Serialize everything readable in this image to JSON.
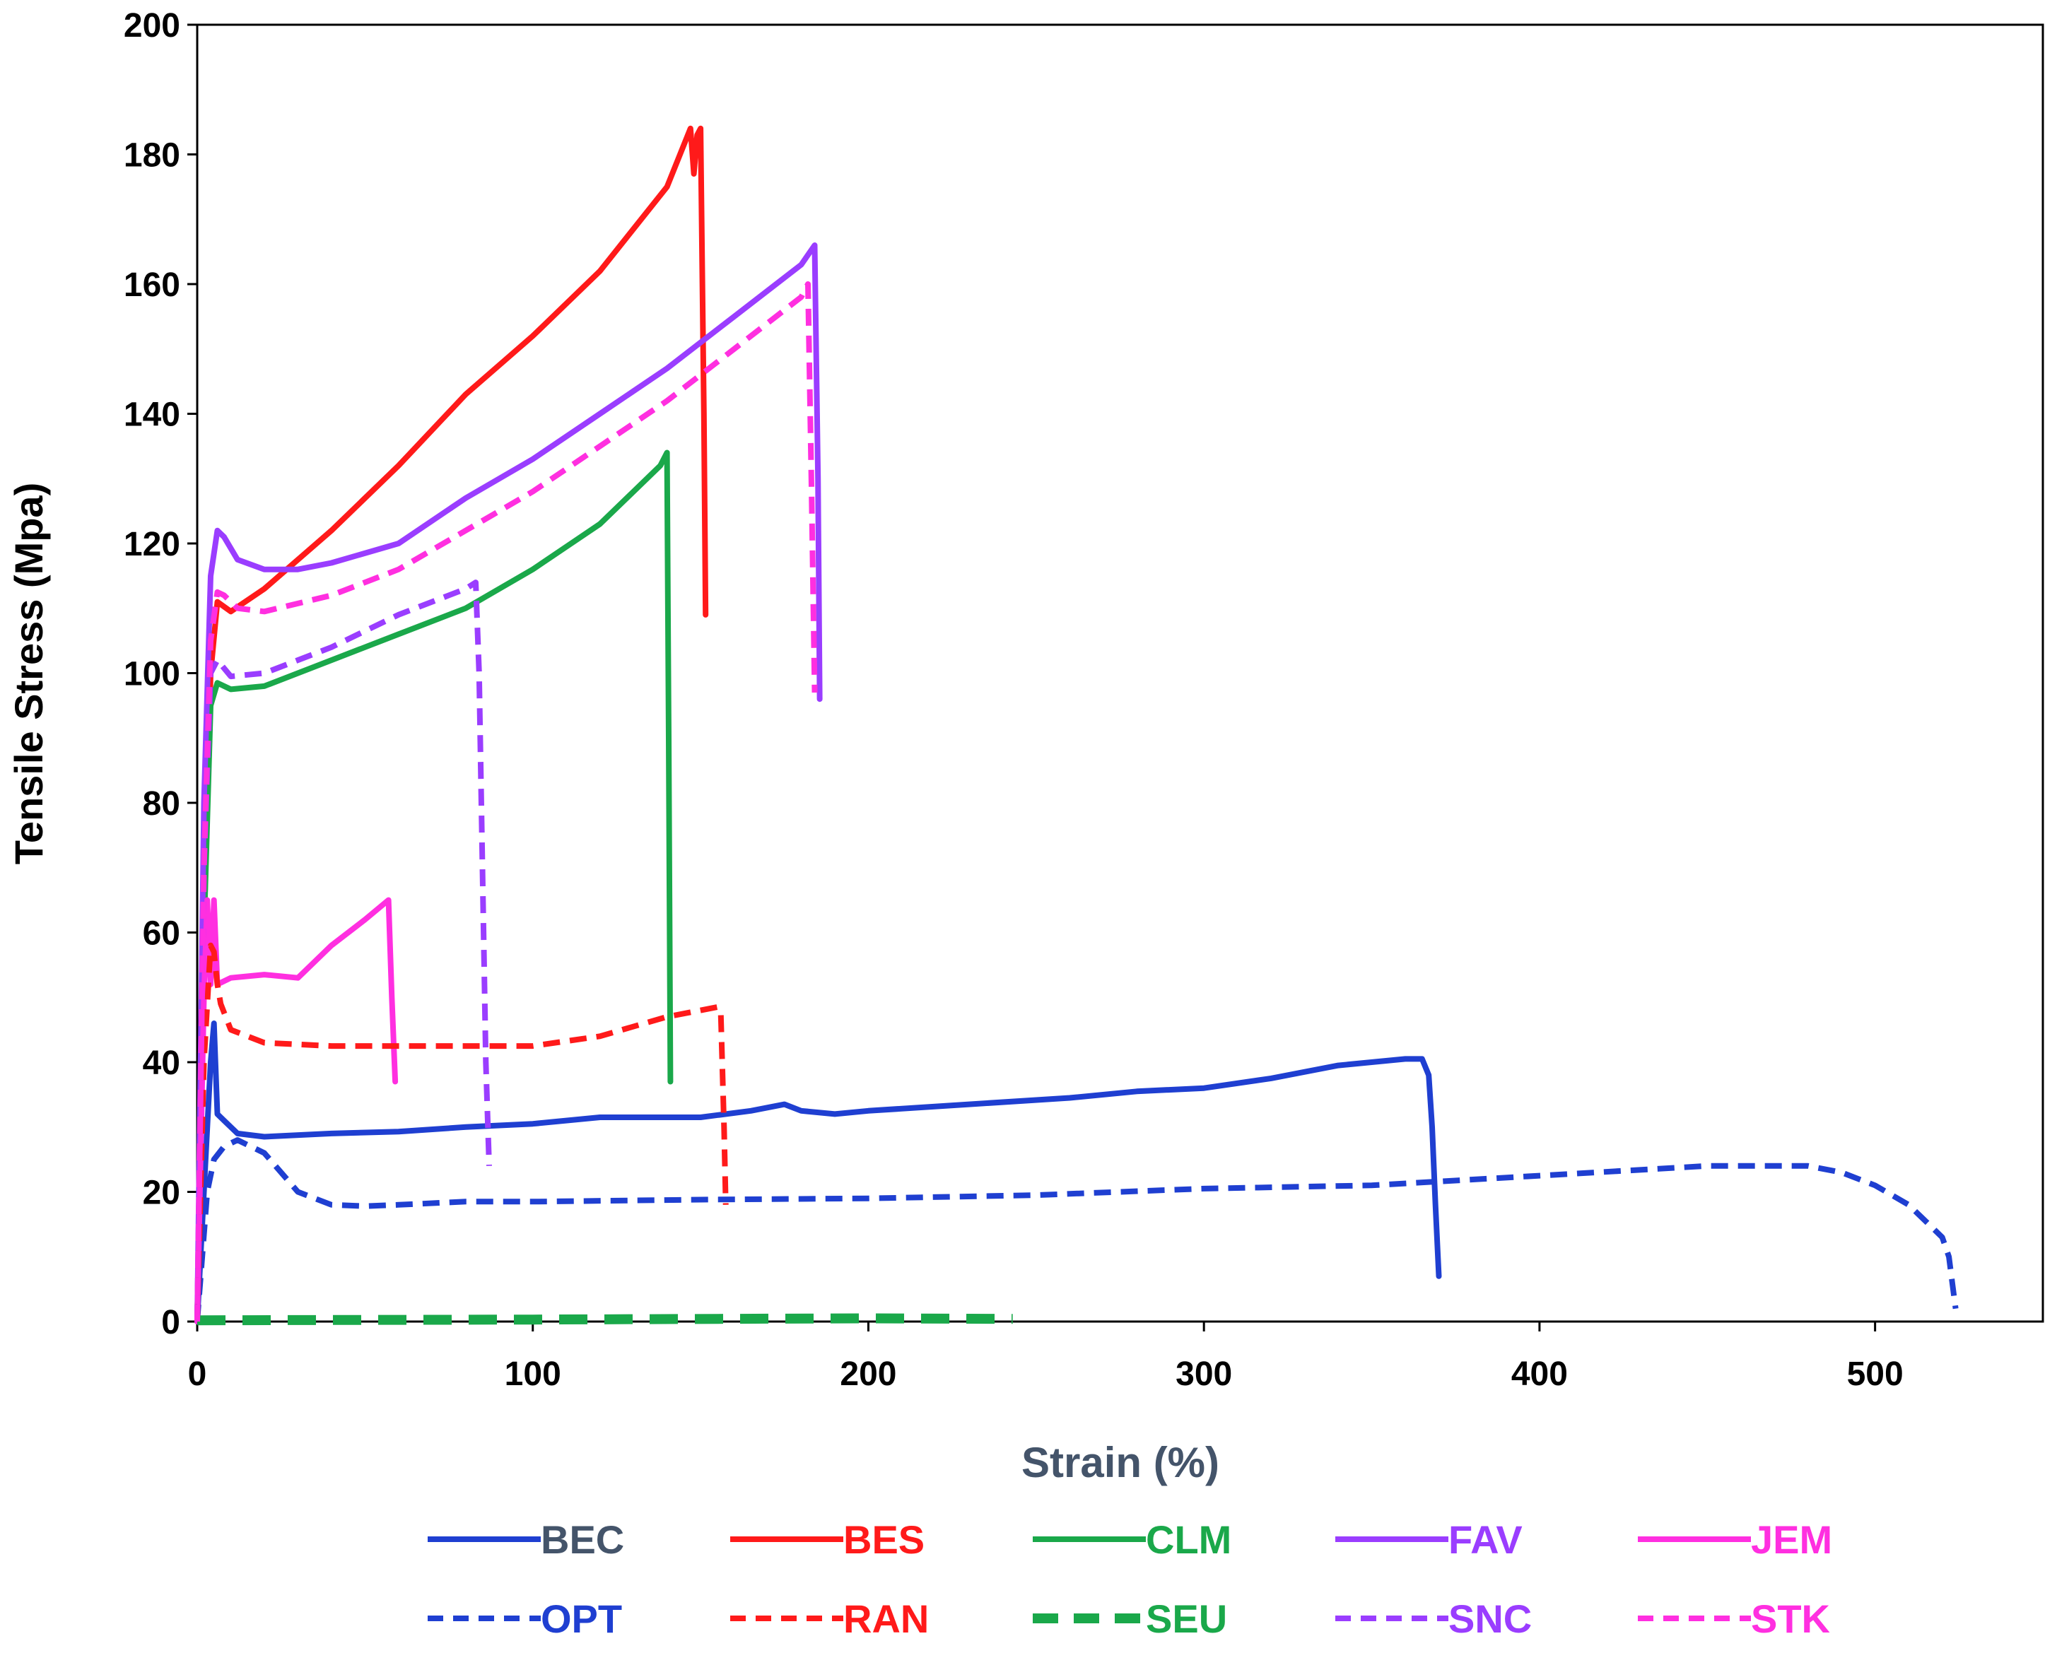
{
  "chart_data": {
    "type": "line",
    "title": "",
    "xlabel": "Strain (%)",
    "ylabel": "Tensile Stress (Mpa)",
    "xlim": [
      0,
      550
    ],
    "ylim": [
      0,
      200
    ],
    "xticks": [
      0,
      100,
      200,
      300,
      400,
      500
    ],
    "yticks": [
      0,
      20,
      40,
      60,
      80,
      100,
      120,
      140,
      160,
      180,
      200
    ],
    "grid": false,
    "legend_position": "bottom",
    "series": [
      {
        "name": "BEC",
        "color": "#1f3fd1",
        "dash": "solid",
        "label_color": "#44546a",
        "x": [
          0,
          2,
          4,
          5,
          6,
          8,
          12,
          20,
          40,
          60,
          80,
          100,
          120,
          150,
          165,
          175,
          180,
          190,
          200,
          230,
          260,
          280,
          300,
          320,
          340,
          360,
          365,
          367,
          368,
          369,
          370
        ],
        "y": [
          0,
          20,
          40,
          46,
          32,
          31,
          29,
          28.5,
          29,
          29.3,
          30,
          30.5,
          31.5,
          31.5,
          32.5,
          33.5,
          32.5,
          32,
          32.5,
          33.5,
          34.5,
          35.5,
          36,
          37.5,
          39.5,
          40.5,
          40.5,
          38,
          30,
          18,
          7
        ]
      },
      {
        "name": "BES",
        "color": "#ff1a1a",
        "dash": "solid",
        "label_color": "#ff1a1a",
        "x": [
          0,
          2,
          4,
          6,
          10,
          20,
          40,
          60,
          80,
          100,
          120,
          140,
          147,
          148,
          149,
          150,
          151,
          151.5
        ],
        "y": [
          0,
          60,
          100,
          111,
          109.5,
          113,
          122,
          132,
          143,
          152,
          162,
          175,
          184,
          177,
          183,
          184,
          140,
          109
        ]
      },
      {
        "name": "CLM",
        "color": "#1aa84a",
        "dash": "solid",
        "label_color": "#1aa84a",
        "x": [
          0,
          2,
          4,
          6,
          10,
          20,
          40,
          60,
          80,
          100,
          120,
          138,
          140,
          140.5,
          141
        ],
        "y": [
          0,
          60,
          95,
          98.5,
          97.5,
          98,
          102,
          106,
          110,
          116,
          123,
          132,
          134,
          90,
          37
        ]
      },
      {
        "name": "FAV",
        "color": "#9a3dff",
        "dash": "solid",
        "label_color": "#9a3dff",
        "x": [
          0,
          2,
          4,
          6,
          8,
          12,
          20,
          30,
          40,
          60,
          80,
          100,
          120,
          140,
          160,
          180,
          184,
          185,
          185.5
        ],
        "y": [
          0,
          80,
          115,
          122,
          121,
          117.5,
          116,
          116,
          117,
          120,
          127,
          133,
          140,
          147,
          155,
          163,
          166,
          130,
          96
        ]
      },
      {
        "name": "JEM",
        "color": "#ff2fe0",
        "dash": "solid",
        "label_color": "#ff2fe0",
        "x": [
          0,
          2,
          3,
          4,
          5,
          6,
          10,
          20,
          30,
          40,
          50,
          57,
          58,
          59
        ],
        "y": [
          0,
          50,
          65,
          52,
          65,
          52,
          53,
          53.5,
          53,
          58,
          62,
          65,
          50,
          37
        ]
      },
      {
        "name": "OPT",
        "color": "#1f3fd1",
        "dash": "dashed",
        "label_color": "#1f3fd1",
        "x": [
          0,
          3,
          5,
          8,
          12,
          20,
          30,
          40,
          50,
          60,
          80,
          100,
          150,
          200,
          250,
          300,
          350,
          400,
          450,
          480,
          490,
          500,
          510,
          520,
          522,
          523,
          524
        ],
        "y": [
          0,
          20,
          25,
          27,
          28,
          26,
          20,
          18,
          17.8,
          18,
          18.5,
          18.5,
          18.8,
          19,
          19.5,
          20.5,
          21,
          22.5,
          24,
          24,
          23,
          21,
          18,
          13,
          10,
          6,
          2
        ]
      },
      {
        "name": "RAN",
        "color": "#ff1a1a",
        "dash": "dashed",
        "label_color": "#ff1a1a",
        "x": [
          0,
          2,
          4,
          5,
          6,
          7,
          10,
          20,
          40,
          60,
          80,
          100,
          120,
          140,
          155,
          156,
          157,
          157.5
        ],
        "y": [
          0,
          40,
          58,
          57,
          52,
          49,
          45,
          43,
          42.5,
          42.5,
          42.5,
          42.5,
          44,
          47,
          48.5,
          48,
          30,
          18
        ]
      },
      {
        "name": "SEU",
        "color": "#1aa84a",
        "dash": "heavy-dashed",
        "label_color": "#1aa84a",
        "x": [
          0,
          100,
          200,
          243
        ],
        "y": [
          0.2,
          0.3,
          0.5,
          0.4
        ]
      },
      {
        "name": "SNC",
        "color": "#9a3dff",
        "dash": "dashed",
        "label_color": "#9a3dff",
        "x": [
          0,
          2,
          4,
          6,
          10,
          20,
          40,
          60,
          80,
          83,
          84,
          85,
          86,
          87
        ],
        "y": [
          0,
          70,
          100,
          102,
          99.5,
          100,
          104,
          109,
          113,
          114,
          100,
          70,
          40,
          24
        ]
      },
      {
        "name": "STK",
        "color": "#ff2fe0",
        "dash": "dashed",
        "label_color": "#ff2fe0",
        "x": [
          0,
          2,
          4,
          6,
          8,
          12,
          20,
          40,
          60,
          80,
          100,
          120,
          140,
          160,
          180,
          182,
          183,
          184
        ],
        "y": [
          0,
          70,
          105,
          112.5,
          112,
          110,
          109.5,
          112,
          116,
          122,
          128,
          135,
          142,
          150,
          158,
          160,
          130,
          97
        ]
      }
    ]
  }
}
